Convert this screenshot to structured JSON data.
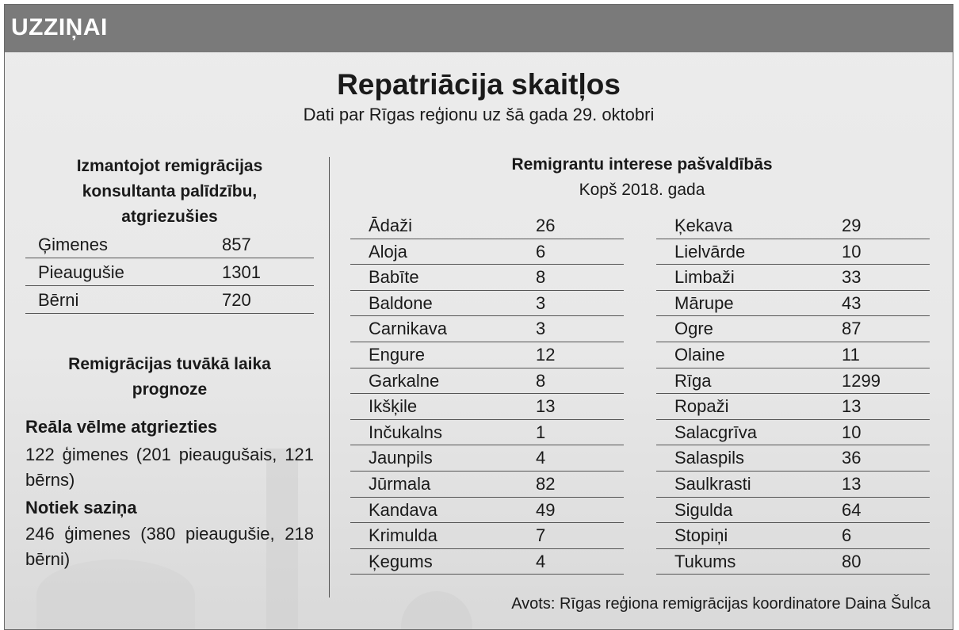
{
  "header": {
    "label": "UZZIŅAI"
  },
  "title": "Repatriācija skaitļos",
  "subtitle": "Dati par Rīgas reģionu uz šā gada 29. oktobri",
  "left": {
    "heading_lines": [
      "Izmantojot remigrācijas",
      "konsultanta palīdzību,",
      "atgriezušies"
    ],
    "rows": [
      {
        "name": "Ģimenes",
        "value": "857"
      },
      {
        "name": "Pieaugušie",
        "value": "1301"
      },
      {
        "name": "Bērni",
        "value": "720"
      }
    ],
    "forecast_lines": [
      "Remigrācijas tuvākā laika",
      "prognoze"
    ],
    "real_heading": "Reāla vēlme atgriezties",
    "real_text": "122 ģimenes (201 pieaugušais, 121 bērns)",
    "contact_heading": "Notiek saziņa",
    "contact_text": "246 ģimenes (380 pieaugušie, 218 bērni)"
  },
  "right": {
    "heading": "Remigrantu interese pašvaldībās",
    "subheading": "Kopš 2018. gada",
    "col1": [
      {
        "name": "Ādaži",
        "value": "26"
      },
      {
        "name": "Aloja",
        "value": "6"
      },
      {
        "name": "Babīte",
        "value": "8"
      },
      {
        "name": "Baldone",
        "value": "3"
      },
      {
        "name": "Carnikava",
        "value": "3"
      },
      {
        "name": "Engure",
        "value": "12"
      },
      {
        "name": "Garkalne",
        "value": "8"
      },
      {
        "name": "Ikšķile",
        "value": "13"
      },
      {
        "name": "Inčukalns",
        "value": "1"
      },
      {
        "name": "Jaunpils",
        "value": "4"
      },
      {
        "name": "Jūrmala",
        "value": "82"
      },
      {
        "name": "Kandava",
        "value": "49"
      },
      {
        "name": "Krimulda",
        "value": "7"
      },
      {
        "name": "Ķegums",
        "value": "4"
      }
    ],
    "col2": [
      {
        "name": "Ķekava",
        "value": "29"
      },
      {
        "name": "Lielvārde",
        "value": "10"
      },
      {
        "name": "Limbaži",
        "value": "33"
      },
      {
        "name": "Mārupe",
        "value": "43"
      },
      {
        "name": "Ogre",
        "value": "87"
      },
      {
        "name": "Olaine",
        "value": "11"
      },
      {
        "name": "Rīga",
        "value": "1299"
      },
      {
        "name": "Ropaži",
        "value": "13"
      },
      {
        "name": "Salacgrīva",
        "value": "10"
      },
      {
        "name": "Salaspils",
        "value": "36"
      },
      {
        "name": "Saulkrasti",
        "value": "13"
      },
      {
        "name": "Sigulda",
        "value": "64"
      },
      {
        "name": "Stopiņi",
        "value": "6"
      },
      {
        "name": "Tukums",
        "value": "80"
      }
    ]
  },
  "source": "Avots: Rīgas reģiona remigrācijas koordinatore Daina Šulca"
}
